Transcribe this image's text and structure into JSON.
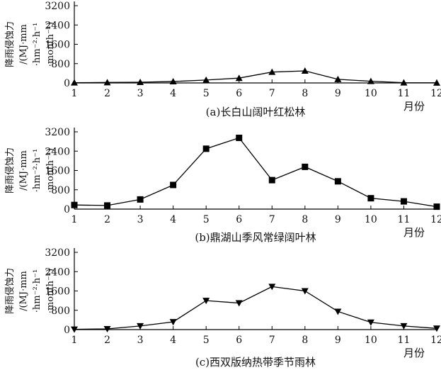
{
  "chart_data": [
    {
      "type": "line",
      "caption": "(a)长白山阔叶红松林",
      "x": [
        1,
        2,
        3,
        4,
        5,
        6,
        7,
        8,
        9,
        10,
        11,
        12
      ],
      "series": [
        {
          "marker": "triangle-up",
          "values": [
            10,
            20,
            30,
            60,
            120,
            200,
            450,
            500,
            150,
            70,
            10,
            5
          ]
        }
      ],
      "xlabel": "月份",
      "ylabel_lines": [
        "降雨侵蚀力",
        "/(MJ·mm",
        "·hm⁻²·h⁻¹",
        "·month⁻¹)"
      ],
      "yticks": [
        0,
        800,
        1600,
        2400,
        3200
      ],
      "ylim": [
        0,
        3200
      ],
      "xlim": [
        1,
        12
      ],
      "grid": false,
      "line_color": "#000000"
    },
    {
      "type": "line",
      "caption": "(b)鼎湖山季风常绿阔叶林",
      "x": [
        1,
        2,
        3,
        4,
        5,
        6,
        7,
        8,
        9,
        10,
        11,
        12
      ],
      "series": [
        {
          "marker": "square",
          "values": [
            170,
            150,
            400,
            1000,
            2500,
            2950,
            1200,
            1750,
            1150,
            450,
            320,
            100
          ]
        }
      ],
      "xlabel": "月份",
      "ylabel_lines": [
        "降雨侵蚀力",
        "/(MJ·mm",
        "·hm⁻²·h⁻¹",
        "·month⁻¹)"
      ],
      "yticks": [
        0,
        800,
        1600,
        2400,
        3200
      ],
      "ylim": [
        0,
        3200
      ],
      "xlim": [
        1,
        12
      ],
      "grid": false,
      "line_color": "#000000"
    },
    {
      "type": "line",
      "caption": "(c)西双版纳热带季节雨林",
      "x": [
        1,
        2,
        3,
        4,
        5,
        6,
        7,
        8,
        9,
        10,
        11,
        12
      ],
      "series": [
        {
          "marker": "triangle-down",
          "values": [
            10,
            30,
            150,
            320,
            1200,
            1100,
            1780,
            1600,
            750,
            300,
            150,
            50
          ]
        }
      ],
      "xlabel": "月份",
      "ylabel_lines": [
        "降雨侵蚀力",
        "/(MJ·mm",
        "·hm⁻²·h⁻¹",
        "·month⁻¹)"
      ],
      "yticks": [
        0,
        800,
        1600,
        2400,
        3200
      ],
      "ylim": [
        0,
        3200
      ],
      "xlim": [
        1,
        12
      ],
      "grid": false,
      "line_color": "#000000"
    }
  ]
}
